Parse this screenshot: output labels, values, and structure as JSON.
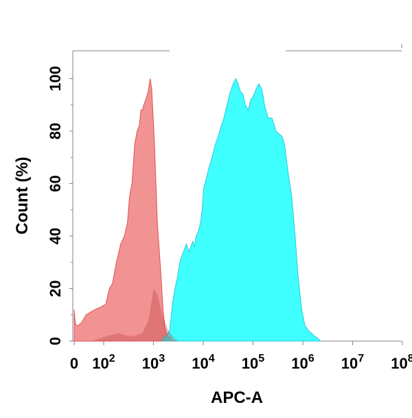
{
  "chart_data": {
    "type": "area",
    "xlabel": "APC-A",
    "ylabel": "Count  (%)",
    "xscale": "biexponential-log",
    "x_ticks": [
      {
        "value": 0,
        "label": "0",
        "exp": ""
      },
      {
        "value": 100,
        "label": "10",
        "exp": "2"
      },
      {
        "value": 1000,
        "label": "10",
        "exp": "3"
      },
      {
        "value": 10000,
        "label": "10",
        "exp": "4"
      },
      {
        "value": 100000,
        "label": "10",
        "exp": "5"
      },
      {
        "value": 1000000,
        "label": "10",
        "exp": "6"
      },
      {
        "value": 10000000,
        "label": "10",
        "exp": "7"
      },
      {
        "value": 100000000,
        "label": "10",
        "exp": "8"
      }
    ],
    "y_ticks": [
      0,
      20,
      40,
      60,
      80,
      100
    ],
    "ylim": [
      0,
      100
    ],
    "grid": false,
    "legend": "none",
    "series": [
      {
        "color": "#F08080",
        "stroke": "#E05050",
        "points": [
          [
            0,
            12
          ],
          [
            3,
            8
          ],
          [
            6,
            6
          ],
          [
            14,
            6
          ],
          [
            25,
            7
          ],
          [
            40,
            10
          ],
          [
            70,
            12
          ],
          [
            90,
            13
          ],
          [
            110,
            14
          ],
          [
            130,
            20
          ],
          [
            150,
            22
          ],
          [
            180,
            30
          ],
          [
            220,
            37
          ],
          [
            260,
            40
          ],
          [
            300,
            45
          ],
          [
            330,
            55
          ],
          [
            370,
            60
          ],
          [
            420,
            75
          ],
          [
            470,
            80
          ],
          [
            520,
            82
          ],
          [
            560,
            88
          ],
          [
            600,
            88
          ],
          [
            640,
            90
          ],
          [
            700,
            92
          ],
          [
            780,
            95
          ],
          [
            860,
            100
          ],
          [
            920,
            96
          ],
          [
            980,
            86
          ],
          [
            1050,
            75
          ],
          [
            1120,
            60
          ],
          [
            1200,
            45
          ],
          [
            1300,
            35
          ],
          [
            1420,
            25
          ],
          [
            1560,
            12
          ],
          [
            1700,
            5
          ],
          [
            1900,
            2
          ],
          [
            2200,
            1
          ]
        ]
      },
      {
        "color": "#00FFFF",
        "stroke": "#2EC7D8",
        "points": [
          [
            1500,
            1
          ],
          [
            1800,
            2
          ],
          [
            2100,
            4
          ],
          [
            2400,
            14
          ],
          [
            2700,
            20
          ],
          [
            3000,
            24
          ],
          [
            3400,
            30
          ],
          [
            3800,
            33
          ],
          [
            4200,
            35
          ],
          [
            4600,
            37
          ],
          [
            5200,
            34
          ],
          [
            5600,
            36
          ],
          [
            6200,
            38
          ],
          [
            6600,
            36
          ],
          [
            7200,
            40
          ],
          [
            8000,
            42
          ],
          [
            8800,
            45
          ],
          [
            9500,
            50
          ],
          [
            10200,
            58
          ],
          [
            11500,
            62
          ],
          [
            13000,
            66
          ],
          [
            15000,
            70
          ],
          [
            17500,
            75
          ],
          [
            20000,
            78
          ],
          [
            23000,
            82
          ],
          [
            26000,
            85
          ],
          [
            30000,
            90
          ],
          [
            35000,
            95
          ],
          [
            40000,
            98
          ],
          [
            45000,
            100
          ],
          [
            50000,
            98
          ],
          [
            56000,
            95
          ],
          [
            63000,
            94
          ],
          [
            70000,
            90
          ],
          [
            80000,
            88
          ],
          [
            90000,
            92
          ],
          [
            100000,
            93
          ],
          [
            115000,
            96
          ],
          [
            130000,
            98
          ],
          [
            150000,
            96
          ],
          [
            170000,
            90
          ],
          [
            200000,
            85
          ],
          [
            240000,
            85
          ],
          [
            290000,
            80
          ],
          [
            330000,
            79
          ],
          [
            380000,
            78
          ],
          [
            430000,
            75
          ],
          [
            500000,
            65
          ],
          [
            600000,
            55
          ],
          [
            700000,
            40
          ],
          [
            800000,
            25
          ],
          [
            950000,
            12
          ],
          [
            1100000,
            6
          ],
          [
            1300000,
            4
          ],
          [
            1500000,
            3
          ],
          [
            1700000,
            2
          ],
          [
            2000000,
            1
          ],
          [
            2300000,
            0
          ]
        ]
      },
      {
        "color": "#C04040",
        "stroke": "#C04040",
        "opacity": 0.35,
        "points": [
          [
            60,
            0
          ],
          [
            120,
            2
          ],
          [
            200,
            3
          ],
          [
            300,
            2
          ],
          [
            400,
            2
          ],
          [
            600,
            3
          ],
          [
            800,
            8
          ],
          [
            1000,
            20
          ],
          [
            1200,
            18
          ],
          [
            1500,
            10
          ],
          [
            2000,
            4
          ],
          [
            2600,
            1
          ],
          [
            3200,
            0
          ]
        ]
      }
    ]
  }
}
